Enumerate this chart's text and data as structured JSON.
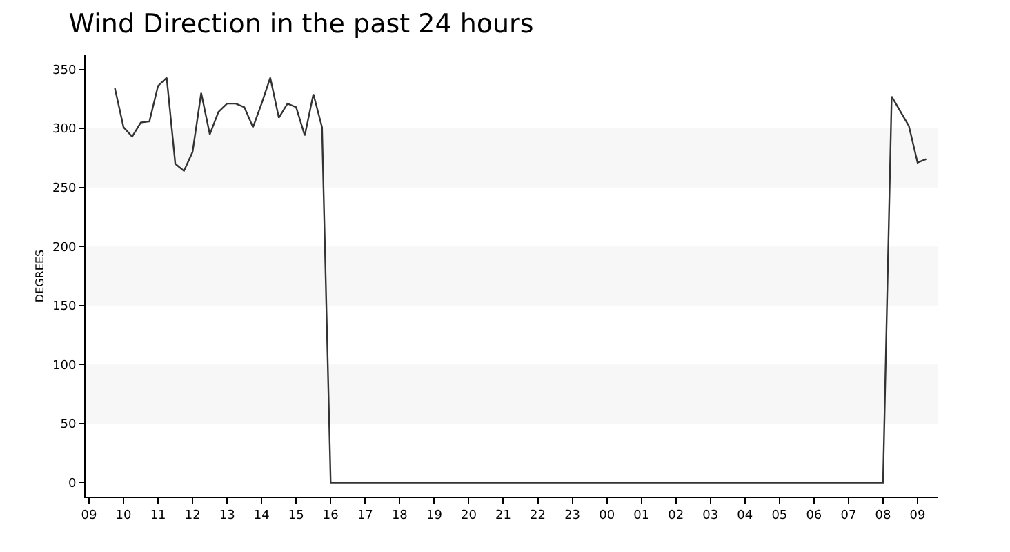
{
  "chart_data": {
    "type": "line",
    "title": "Wind Direction in the past 24 hours",
    "ylabel": "DEGREES",
    "x": [
      9.75,
      10,
      10.25,
      10.5,
      10.75,
      11,
      11.25,
      11.5,
      11.75,
      12,
      12.25,
      12.5,
      12.75,
      13,
      13.25,
      13.5,
      13.75,
      14,
      14.25,
      14.5,
      14.75,
      15,
      15.25,
      15.5,
      15.75,
      16,
      32,
      32.25,
      32.75,
      33,
      33.25
    ],
    "series": [
      {
        "color": "#333333",
        "values": [
          334,
          301,
          293,
          305,
          306,
          336,
          343,
          270,
          264,
          280,
          330,
          295,
          314,
          321,
          321,
          318,
          301,
          321,
          343,
          309,
          321,
          318,
          294,
          329,
          301,
          0,
          0,
          327,
          302,
          271,
          274
        ]
      }
    ],
    "xlim": [
      8.9,
      33.6
    ],
    "xticks": [
      {
        "value": 9,
        "label": "09"
      },
      10,
      11,
      12,
      13,
      14,
      15,
      16,
      17,
      18,
      19,
      20,
      21,
      22,
      23,
      {
        "value": 24,
        "label": "00"
      },
      {
        "value": 25,
        "label": "01"
      },
      {
        "value": 26,
        "label": "02"
      },
      {
        "value": 27,
        "label": "03"
      },
      {
        "value": 28,
        "label": "04"
      },
      {
        "value": 29,
        "label": "05"
      },
      {
        "value": 30,
        "label": "06"
      },
      {
        "value": 31,
        "label": "07"
      },
      {
        "value": 32,
        "label": "08"
      },
      {
        "value": 33,
        "label": "09"
      }
    ],
    "ylim": [
      -12,
      362
    ],
    "yticks": [
      0,
      50,
      100,
      150,
      200,
      250,
      300,
      350
    ],
    "bands": [
      {
        "axis": "y",
        "from": 50,
        "to": 100,
        "color": "#f7f7f7"
      },
      {
        "axis": "y",
        "from": 150,
        "to": 200,
        "color": "#f7f7f7"
      },
      {
        "axis": "y",
        "from": 250,
        "to": 300,
        "color": "#f7f7f7"
      }
    ],
    "grid": false,
    "marker": "none",
    "line_style": "solid"
  }
}
